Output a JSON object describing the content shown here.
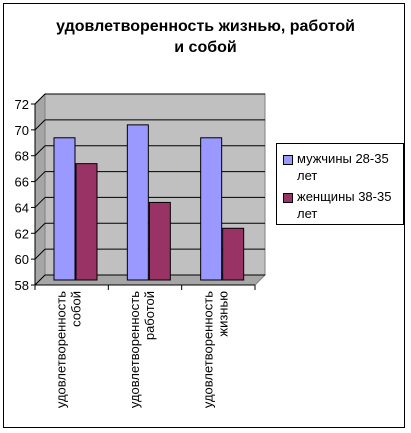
{
  "chart_data": {
    "type": "bar",
    "title_line1": "удовлетворенность жизнью, работой",
    "title_line2": "и собой",
    "categories": [
      "удовлетворенность собой",
      "удовлетворенность работой",
      "удовлетворенность жизнью"
    ],
    "category_lines": [
      [
        "удовлетворенность",
        "собой"
      ],
      [
        "удовлетворенность",
        "работой"
      ],
      [
        "удовлетворенность",
        "жизнью"
      ]
    ],
    "series": [
      {
        "name": "мужчины 28-35 лет",
        "name_lines": [
          "мужчины 28-35",
          "лет"
        ],
        "values": [
          69,
          70,
          69
        ],
        "color": "#9999FF"
      },
      {
        "name": "женщины 38-35 лет",
        "name_lines": [
          "женщины 38-35",
          "лет"
        ],
        "values": [
          67,
          64,
          62
        ],
        "color": "#993366"
      }
    ],
    "ylim": [
      58,
      72
    ],
    "yticks": [
      58,
      60,
      62,
      64,
      66,
      68,
      70,
      72
    ],
    "plot_background": "#C0C0C0",
    "grid": true,
    "legend_position": "right"
  }
}
